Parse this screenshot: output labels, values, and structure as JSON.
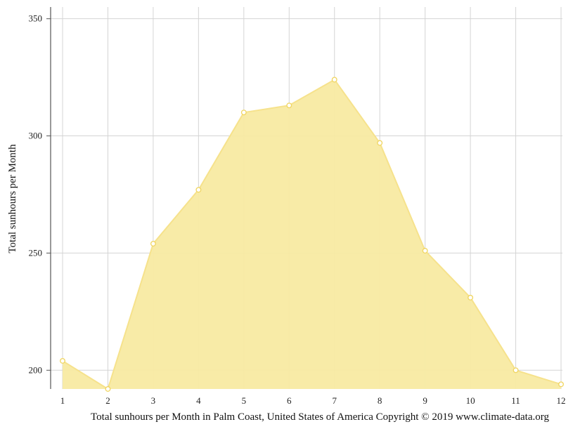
{
  "chart_data": {
    "type": "area",
    "title": "",
    "ylabel": "Total sunhours per Month",
    "xlabel": "",
    "caption": "Total sunhours per Month in Palm Coast, United States of America Copyright © 2019 www.climate-data.org",
    "x": [
      1,
      2,
      3,
      4,
      5,
      6,
      7,
      8,
      9,
      10,
      11,
      12
    ],
    "x_tick_labels": [
      "1",
      "2",
      "3",
      "4",
      "5",
      "6",
      "7",
      "8",
      "9",
      "10",
      "11",
      "12"
    ],
    "values": [
      204,
      192,
      254,
      277,
      310,
      313,
      324,
      297,
      251,
      231,
      200,
      194
    ],
    "ylim": [
      192,
      355
    ],
    "y_ticks": [
      200,
      250,
      300,
      350
    ],
    "y_tick_labels": [
      "200",
      "250",
      "300",
      "350"
    ],
    "grid": true,
    "legend": "none",
    "colors": {
      "fill": "#f8eaa2",
      "line": "#f6e28c",
      "marker_stroke": "#f0d560",
      "marker_fill": "#ffffff",
      "grid": "#d4d4d4",
      "axis": "#555555"
    }
  }
}
